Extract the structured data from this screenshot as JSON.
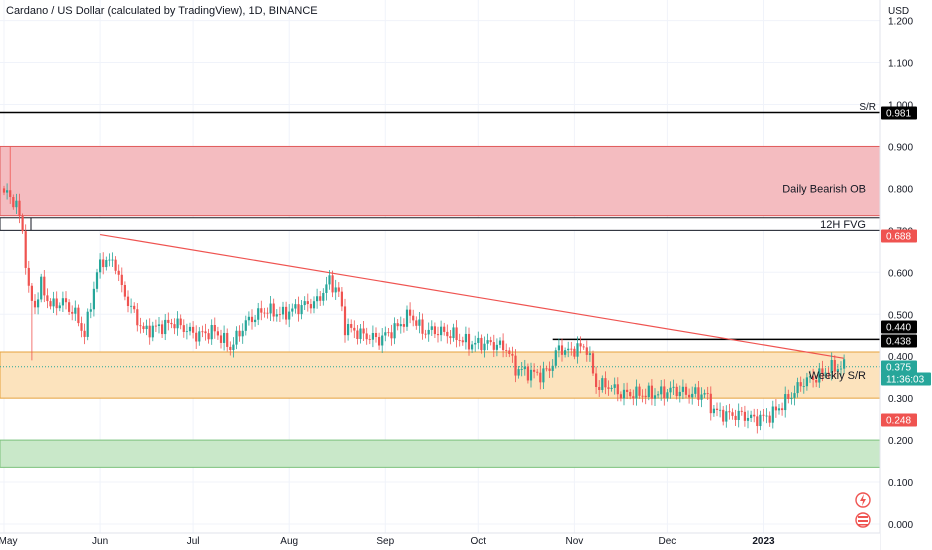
{
  "header": {
    "title": "Cardano / US Dollar (calculated by TradingView), 1D, BINANCE"
  },
  "chart_data": {
    "type": "candlestick",
    "symbol": "ADAUSD",
    "interval": "1D",
    "y_axis": {
      "unit": "USD",
      "ylim": [
        0.0,
        1.25
      ],
      "ticks": [
        "1.200",
        "1.100",
        "1.000",
        "0.900",
        "0.800",
        "0.700",
        "0.600",
        "0.500",
        "0.400",
        "0.300",
        "0.200",
        "0.100",
        "0.000"
      ]
    },
    "x_axis": {
      "ticks": [
        "May",
        "Jun",
        "Jul",
        "Aug",
        "Sep",
        "Oct",
        "Nov",
        "Dec",
        "2023"
      ]
    },
    "colors": {
      "up": "#26a69a",
      "down": "#ef5350",
      "bearish_zone": "#f4bcc0",
      "support_zone": "#fce3bd",
      "green_zone": "#c9e8c9",
      "trendline": "#ef5350"
    },
    "zones": [
      {
        "label": "Daily Bearish OB",
        "from": 0.735,
        "to": 0.9,
        "color": "#f4bcc0"
      },
      {
        "label": "12H FVG",
        "from": 0.7,
        "to": 0.73,
        "color": "#ffffff"
      },
      {
        "label": "Weekly S/R",
        "from": 0.3,
        "to": 0.41,
        "color": "#fce3bd"
      },
      {
        "label": "",
        "from": 0.135,
        "to": 0.2,
        "color": "#c9e8c9"
      }
    ],
    "horizontal_lines": [
      {
        "label": "S/R",
        "value": 0.981
      },
      {
        "label": "",
        "value": 0.44
      }
    ],
    "trendline": {
      "from": {
        "date": "Jun 1",
        "value": 0.69
      },
      "to": {
        "date": "Jan 27",
        "value": 0.395
      }
    },
    "price_labels": [
      {
        "text": "0.981",
        "bg": "#000000"
      },
      {
        "text": "0.688",
        "bg": "#ef5350"
      },
      {
        "text": "0.440",
        "bg": "#000000"
      },
      {
        "text": "0.438",
        "bg": "#000000"
      },
      {
        "text": "0.375",
        "bg": "#26a69a"
      },
      {
        "text": "11:36:03",
        "bg": "#26a69a"
      },
      {
        "text": "0.248",
        "bg": "#ef5350"
      }
    ],
    "series": [
      {
        "name": "",
        "keypoints": [
          [
            "Apr 29",
            0.8
          ],
          [
            "May 3",
            0.78
          ],
          [
            "May 5",
            0.76
          ],
          [
            "May 7",
            0.7
          ],
          [
            "May 9",
            0.55
          ],
          [
            "May 11",
            0.52
          ],
          [
            "May 13",
            0.57
          ],
          [
            "May 16",
            0.52
          ],
          [
            "May 20",
            0.53
          ],
          [
            "May 24",
            0.5
          ],
          [
            "May 27",
            0.45
          ],
          [
            "May 31",
            0.6
          ],
          [
            "Jun 2",
            0.63
          ],
          [
            "Jun 6",
            0.62
          ],
          [
            "Jun 8",
            0.56
          ],
          [
            "Jun 12",
            0.5
          ],
          [
            "Jun 15",
            0.46
          ],
          [
            "Jun 20",
            0.47
          ],
          [
            "Jun 25",
            0.48
          ],
          [
            "Jul 2",
            0.45
          ],
          [
            "Jul 8",
            0.46
          ],
          [
            "Jul 13",
            0.42
          ],
          [
            "Jul 18",
            0.48
          ],
          [
            "Jul 24",
            0.51
          ],
          [
            "Jul 30",
            0.5
          ],
          [
            "Aug 5",
            0.52
          ],
          [
            "Aug 10",
            0.53
          ],
          [
            "Aug 14",
            0.58
          ],
          [
            "Aug 17",
            0.55
          ],
          [
            "Aug 19",
            0.47
          ],
          [
            "Aug 25",
            0.45
          ],
          [
            "Aug 30",
            0.44
          ],
          [
            "Sep 5",
            0.47
          ],
          [
            "Sep 9",
            0.5
          ],
          [
            "Sep 13",
            0.46
          ],
          [
            "Sep 18",
            0.46
          ],
          [
            "Sep 23",
            0.45
          ],
          [
            "Sep 28",
            0.43
          ],
          [
            "Oct 5",
            0.43
          ],
          [
            "Oct 10",
            0.42
          ],
          [
            "Oct 13",
            0.37
          ],
          [
            "Oct 18",
            0.36
          ],
          [
            "Oct 21",
            0.355
          ],
          [
            "Oct 24",
            0.37
          ],
          [
            "Oct 27",
            0.42
          ],
          [
            "Oct 30",
            0.41
          ],
          [
            "Nov 2",
            0.42
          ],
          [
            "Nov 5",
            0.42
          ],
          [
            "Nov 8",
            0.33
          ],
          [
            "Nov 12",
            0.33
          ],
          [
            "Nov 16",
            0.31
          ],
          [
            "Nov 22",
            0.31
          ],
          [
            "Nov 28",
            0.31
          ],
          [
            "Dec 3",
            0.32
          ],
          [
            "Dec 8",
            0.31
          ],
          [
            "Dec 13",
            0.31
          ],
          [
            "Dec 16",
            0.27
          ],
          [
            "Dec 20",
            0.26
          ],
          [
            "Dec 25",
            0.26
          ],
          [
            "Dec 29",
            0.25
          ],
          [
            "Jan 2",
            0.255
          ],
          [
            "Jan 5",
            0.27
          ],
          [
            "Jan 9",
            0.3
          ],
          [
            "Jan 14",
            0.34
          ],
          [
            "Jan 18",
            0.35
          ],
          [
            "Jan 22",
            0.37
          ],
          [
            "Jan 27",
            0.375
          ]
        ]
      }
    ]
  }
}
